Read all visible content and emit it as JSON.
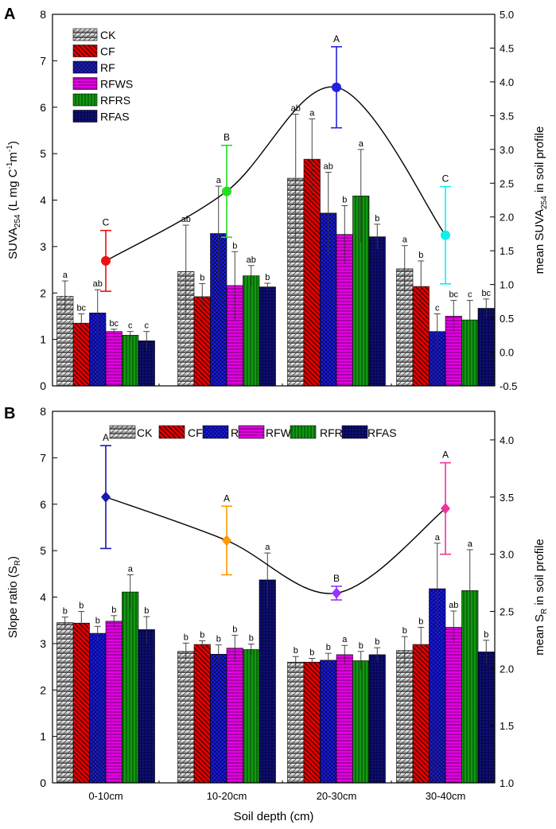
{
  "chart_data": [
    {
      "panel_label": "A",
      "type": "bar",
      "categories": [
        "0-10cm",
        "10-20cm",
        "20-30cm",
        "30-40cm"
      ],
      "ylabel_left_main": "SUVA",
      "ylabel_left_sub": "254",
      "ylabel_left_unit": " (L mg C",
      "ylabel_left_unit_sup1": "-1",
      "ylabel_left_unit_mid": "m",
      "ylabel_left_unit_sup2": "-1",
      "ylabel_left_close": ")",
      "ylabel_right_pre": "mean SUVA",
      "ylabel_right_sub": "254",
      "ylabel_right_post": " in soil profile",
      "ylim": [
        0,
        8
      ],
      "yticks": [
        "0",
        "1",
        "2",
        "3",
        "4",
        "5",
        "6",
        "7",
        "8"
      ],
      "ylim_right": [
        -0.5,
        5.0
      ],
      "yticks_right": [
        "-0.5",
        "0.0",
        "0.5",
        "1.0",
        "1.5",
        "2.0",
        "2.5",
        "3.0",
        "3.5",
        "4.0",
        "4.5",
        "5.0"
      ],
      "legend_position": "top-left",
      "series": [
        {
          "name": "CK",
          "color": "#b0b0b0",
          "pattern": "pat-ck",
          "values": [
            1.93,
            2.46,
            4.47,
            2.52
          ],
          "errors": [
            0.33,
            1.0,
            1.38,
            0.5
          ],
          "labels": [
            "a",
            "ab",
            "ab",
            "a"
          ]
        },
        {
          "name": "CF",
          "color": "#e00000",
          "pattern": "pat-cf",
          "values": [
            1.35,
            1.92,
            4.88,
            2.14
          ],
          "errors": [
            0.2,
            0.28,
            0.87,
            0.55
          ],
          "labels": [
            "bc",
            "b",
            "a",
            "b"
          ]
        },
        {
          "name": "RF",
          "color": "#1a1ae6",
          "pattern": "pat-rf",
          "values": [
            1.57,
            3.28,
            3.72,
            1.17
          ],
          "errors": [
            0.5,
            1.02,
            0.88,
            0.38
          ],
          "labels": [
            "ab",
            "a",
            "ab",
            "c"
          ]
        },
        {
          "name": "RFWS",
          "color": "#e600e6",
          "pattern": "pat-rfws",
          "values": [
            1.17,
            2.16,
            3.26,
            1.5
          ],
          "errors": [
            0.05,
            0.73,
            0.62,
            0.34
          ],
          "labels": [
            "bc",
            "b",
            "b",
            "bc"
          ]
        },
        {
          "name": "RFRS",
          "color": "#119911",
          "pattern": "pat-rfrs",
          "values": [
            1.09,
            2.37,
            4.09,
            1.42
          ],
          "errors": [
            0.08,
            0.22,
            1.0,
            0.42
          ],
          "labels": [
            "c",
            "ab",
            "a",
            "c"
          ]
        },
        {
          "name": "RFAS",
          "color": "#10107a",
          "pattern": "pat-rfas",
          "values": [
            0.97,
            2.13,
            3.21,
            1.67
          ],
          "errors": [
            0.2,
            0.08,
            0.27,
            0.2
          ],
          "labels": [
            "c",
            "b",
            "b",
            "bc"
          ]
        }
      ],
      "mean_series": {
        "values": [
          1.35,
          2.38,
          3.92,
          1.73
        ],
        "errors": [
          0.45,
          0.68,
          0.6,
          0.72
        ],
        "labels": [
          "C",
          "B",
          "A",
          "C"
        ],
        "colors": [
          "#ee1111",
          "#22dd22",
          "#2222dd",
          "#11eeee"
        ],
        "marker": "circle"
      }
    },
    {
      "panel_label": "B",
      "type": "bar",
      "categories": [
        "0-10cm",
        "10-20cm",
        "20-30cm",
        "30-40cm"
      ],
      "ylabel_left_main": "Slope ratio (S",
      "ylabel_left_sub": "R",
      "ylabel_left_close": ")",
      "ylabel_right_pre": "mean S",
      "ylabel_right_sub": "R",
      "ylabel_right_post": " in soil profile",
      "xlabel": "Soil depth (cm)",
      "ylim": [
        0,
        8
      ],
      "yticks": [
        "0",
        "1",
        "2",
        "3",
        "4",
        "5",
        "6",
        "7",
        "8"
      ],
      "ylim_right": [
        1.0,
        4.25
      ],
      "yticks_right": [
        "1.0",
        "1.5",
        "2.0",
        "2.5",
        "3.0",
        "3.5",
        "4.0"
      ],
      "legend_position": "top",
      "series": [
        {
          "name": "CK",
          "color": "#b0b0b0",
          "pattern": "pat-ck",
          "values": [
            3.45,
            2.83,
            2.6,
            2.85
          ],
          "errors": [
            0.12,
            0.18,
            0.12,
            0.3
          ],
          "labels": [
            "b",
            "b",
            "b",
            "b"
          ]
        },
        {
          "name": "CF",
          "color": "#e00000",
          "pattern": "pat-cf",
          "values": [
            3.44,
            2.98,
            2.6,
            2.98
          ],
          "errors": [
            0.25,
            0.08,
            0.08,
            0.37
          ],
          "labels": [
            "b",
            "b",
            "b",
            "b"
          ]
        },
        {
          "name": "RF",
          "color": "#1a1ae6",
          "pattern": "pat-rf",
          "values": [
            3.22,
            2.77,
            2.64,
            4.18
          ],
          "errors": [
            0.15,
            0.2,
            0.15,
            0.98
          ],
          "labels": [
            "b",
            "b",
            "b",
            "a"
          ]
        },
        {
          "name": "RFWS",
          "color": "#e600e6",
          "pattern": "pat-rfws",
          "values": [
            3.48,
            2.9,
            2.76,
            3.35
          ],
          "errors": [
            0.12,
            0.28,
            0.2,
            0.35
          ],
          "labels": [
            "b",
            "b",
            "a",
            "ab"
          ]
        },
        {
          "name": "RFRS",
          "color": "#119911",
          "pattern": "pat-rfrs",
          "values": [
            4.11,
            2.87,
            2.63,
            4.14
          ],
          "errors": [
            0.37,
            0.12,
            0.2,
            0.88
          ],
          "labels": [
            "a",
            "b",
            "b",
            "a"
          ]
        },
        {
          "name": "RFAS",
          "color": "#10107a",
          "pattern": "pat-rfas",
          "values": [
            3.3,
            4.37,
            2.76,
            2.82
          ],
          "errors": [
            0.28,
            0.58,
            0.15,
            0.25
          ],
          "labels": [
            "b",
            "a",
            "b",
            "b"
          ]
        }
      ],
      "mean_series": {
        "values": [
          3.5,
          3.12,
          2.66,
          3.4
        ],
        "errors": [
          0.45,
          0.3,
          0.06,
          0.4
        ],
        "labels": [
          "A",
          "A",
          "B",
          "A"
        ],
        "colors": [
          "#1a1ab0",
          "#ff9900",
          "#9933ff",
          "#ee3399"
        ],
        "marker": "diamond"
      }
    }
  ]
}
